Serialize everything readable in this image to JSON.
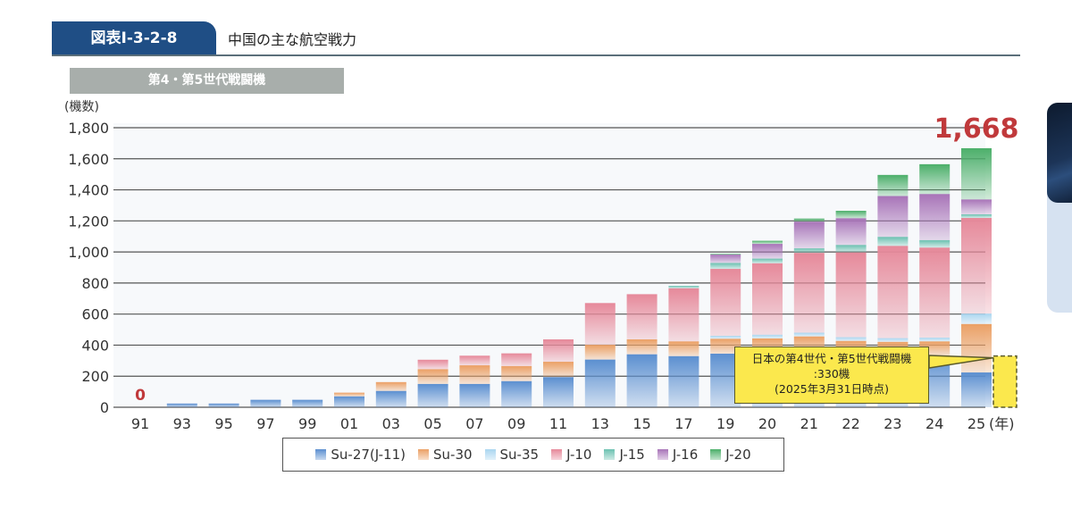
{
  "header": {
    "figure_id": "図表Ⅰ-3-2-8",
    "title": "中国の主な航空戦力",
    "subtitle": "第4・第5世代戦闘機"
  },
  "chart_data": {
    "type": "bar",
    "stacked": true,
    "title": "第4・第5世代戦闘機",
    "ylabel": "(機数)",
    "xlabel": "(年)",
    "ylim": [
      0,
      1800
    ],
    "yticks": [
      0,
      200,
      400,
      600,
      800,
      1000,
      1200,
      1400,
      1600,
      1800
    ],
    "ytick_labels": [
      "0",
      "200",
      "400",
      "600",
      "800",
      "1,000",
      "1,200",
      "1,400",
      "1,600",
      "1,800"
    ],
    "grid": true,
    "legend_position": "bottom",
    "categories": [
      "91",
      "93",
      "95",
      "97",
      "99",
      "01",
      "03",
      "05",
      "07",
      "09",
      "11",
      "13",
      "15",
      "17",
      "19",
      "20",
      "21",
      "22",
      "23",
      "24",
      "25"
    ],
    "series": [
      {
        "name": "Su-27(J-11)",
        "color": "#5b8fd0",
        "values": [
          0,
          24,
          24,
          48,
          48,
          70,
          105,
          150,
          150,
          168,
          194,
          307,
          341,
          329,
          345,
          345,
          345,
          340,
          335,
          330,
          224
        ]
      },
      {
        "name": "Su-30",
        "color": "#eba065",
        "values": [
          0,
          0,
          0,
          0,
          0,
          24,
          57,
          95,
          120,
          97,
          99,
          95,
          96,
          95,
          96,
          98,
          111,
          87,
          86,
          94,
          312
        ]
      },
      {
        "name": "Su-35",
        "color": "#a9d6f0",
        "values": [
          0,
          0,
          0,
          0,
          0,
          0,
          0,
          0,
          0,
          0,
          0,
          0,
          0,
          0,
          19,
          24,
          24,
          24,
          24,
          24,
          67
        ]
      },
      {
        "name": "J-10",
        "color": "#e6899a",
        "values": [
          0,
          0,
          0,
          0,
          0,
          0,
          0,
          61,
          62,
          82,
          144,
          269,
          291,
          342,
          431,
          460,
          514,
          546,
          594,
          580,
          616
        ]
      },
      {
        "name": "J-15",
        "color": "#6bc1b0",
        "values": [
          0,
          0,
          0,
          0,
          0,
          0,
          0,
          0,
          0,
          0,
          0,
          0,
          0,
          16,
          38,
          30,
          29,
          48,
          58,
          48,
          23
        ]
      },
      {
        "name": "J-16",
        "color": "#a874b8",
        "values": [
          0,
          0,
          0,
          0,
          0,
          0,
          0,
          0,
          0,
          0,
          0,
          0,
          0,
          0,
          54,
          95,
          172,
          172,
          263,
          297,
          96
        ]
      },
      {
        "name": "J-20",
        "color": "#4caf6a",
        "values": [
          0,
          0,
          0,
          0,
          0,
          0,
          0,
          0,
          0,
          0,
          0,
          0,
          0,
          0,
          6,
          20,
          20,
          48,
          136,
          192,
          330
        ]
      }
    ],
    "annotations": [
      {
        "target": "91",
        "text": "0",
        "color": "#c0393b"
      },
      {
        "target": "25",
        "text": "1,668",
        "color": "#c0393b"
      }
    ],
    "reference": {
      "label": "日本の第4世代・第5世代戦闘機",
      "value_text": ":330機",
      "date_text": "(2025年3月31日時点)",
      "value": 330,
      "color": "#fbe84d"
    }
  }
}
